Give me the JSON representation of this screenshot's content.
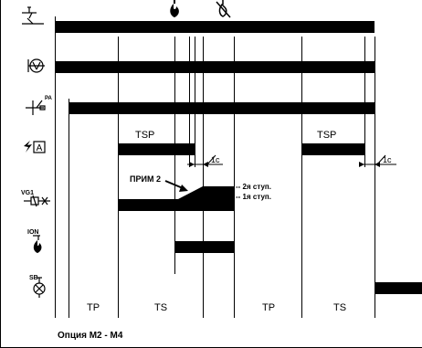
{
  "rows": [
    {
      "id": "thermostat",
      "icon": "thermostat-symbol-icon"
    },
    {
      "id": "fan",
      "icon": "fan-valve-symbol-icon"
    },
    {
      "id": "pressure",
      "icon": "pressure-switch-icon",
      "tag": "PA"
    },
    {
      "id": "ignition",
      "icon": "ignition-spark-icon",
      "tag": "A"
    },
    {
      "id": "gas_valve",
      "icon": "two-stage-gas-valve-icon",
      "tag": "VG1"
    },
    {
      "id": "ionization",
      "icon": "flame-ionization-icon",
      "tag": "ION"
    },
    {
      "id": "lockout",
      "icon": "lockout-lamp-icon",
      "tag": "SB"
    }
  ],
  "top_icons": [
    "flame-on-icon",
    "flame-off-icon"
  ],
  "labels": {
    "tsp1": "TSP",
    "tsp2": "TSP",
    "delay1": "1c",
    "delay2": "1c",
    "note": "ПРИМ 2",
    "stage2": "-- 2я ступ.",
    "stage1": "-- 1я ступ."
  },
  "phases": [
    "TP",
    "TS",
    "TP",
    "TS"
  ],
  "footer": {
    "option": "Опция  M2 - M4"
  },
  "colors": {
    "ink": "#000000",
    "background": "#ffffff"
  }
}
